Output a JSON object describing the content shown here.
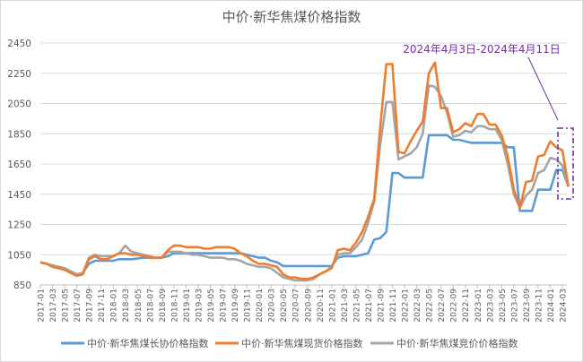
{
  "chart_data": {
    "type": "line",
    "title": "中价·新华焦煤价格指数",
    "xlabel": "",
    "ylabel": "",
    "ylim": [
      850,
      2450
    ],
    "yticks": [
      850,
      1050,
      1250,
      1450,
      1650,
      1850,
      2050,
      2250,
      2450
    ],
    "grid": true,
    "legend_placement": "bottom",
    "x": [
      "2017-01",
      "2017-02",
      "2017-03",
      "2017-04",
      "2017-05",
      "2017-06",
      "2017-07",
      "2017-08",
      "2017-09",
      "2017-10",
      "2017-11",
      "2017-12",
      "2018-01",
      "2018-02",
      "2018-03",
      "2018-04",
      "2018-05",
      "2018-06",
      "2018-07",
      "2018-08",
      "2018-09",
      "2018-10",
      "2018-11",
      "2018-12",
      "2019-01",
      "2019-02",
      "2019-03",
      "2019-04",
      "2019-05",
      "2019-06",
      "2019-07",
      "2019-08",
      "2019-09",
      "2019-10",
      "2019-11",
      "2019-12",
      "2020-01",
      "2020-02",
      "2020-03",
      "2020-04",
      "2020-05",
      "2020-06",
      "2020-07",
      "2020-08",
      "2020-09",
      "2020-10",
      "2020-11",
      "2020-12",
      "2021-01",
      "2021-02",
      "2021-03",
      "2021-04",
      "2021-05",
      "2021-06",
      "2021-07",
      "2021-08",
      "2021-09",
      "2021-10",
      "2021-11",
      "2021-12",
      "2022-01",
      "2022-02",
      "2022-03",
      "2022-04",
      "2022-05",
      "2022-06",
      "2022-07",
      "2022-08",
      "2022-09",
      "2022-10",
      "2022-11",
      "2022-12",
      "2023-01",
      "2023-02",
      "2023-03",
      "2023-04",
      "2023-05",
      "2023-06",
      "2023-07",
      "2023-08",
      "2023-09",
      "2023-10",
      "2023-11",
      "2023-12",
      "2024-01",
      "2024-02",
      "2024-03",
      "2024-04"
    ],
    "xtick_labels": [
      "2017-01",
      "2017-03",
      "2017-05",
      "2017-07",
      "2017-09",
      "2017-11",
      "2018-01",
      "2018-03",
      "2018-05",
      "2018-07",
      "2018-09",
      "2018-11",
      "2019-01",
      "2019-03",
      "2019-05",
      "2019-07",
      "2019-09",
      "2019-11",
      "2020-01",
      "2020-03",
      "2020-05",
      "2020-07",
      "2020-09",
      "2020-11",
      "2021-01",
      "2021-03",
      "2021-05",
      "2021-07",
      "2021-09",
      "2021-11",
      "2022-01",
      "2022-03",
      "2022-05",
      "2022-07",
      "2022-09",
      "2022-11",
      "2023-01",
      "2023-03",
      "2023-05",
      "2023-07",
      "2023-09",
      "2023-11",
      "2024-01",
      "2024-03"
    ],
    "series": [
      {
        "name": "中价·新华焦煤长协价格指数",
        "color": "#5b9bd5",
        "values": [
          1000,
          990,
          980,
          970,
          960,
          940,
          920,
          930,
          990,
          1010,
          1010,
          1010,
          1010,
          1020,
          1020,
          1020,
          1025,
          1030,
          1030,
          1030,
          1030,
          1040,
          1060,
          1060,
          1060,
          1060,
          1060,
          1060,
          1060,
          1060,
          1060,
          1060,
          1060,
          1060,
          1050,
          1040,
          1030,
          1030,
          1010,
          1000,
          975,
          975,
          975,
          975,
          975,
          975,
          975,
          975,
          975,
          1030,
          1040,
          1040,
          1040,
          1050,
          1060,
          1150,
          1160,
          1200,
          1590,
          1590,
          1560,
          1560,
          1560,
          1560,
          1840,
          1840,
          1840,
          1840,
          1810,
          1810,
          1800,
          1790,
          1790,
          1790,
          1790,
          1790,
          1790,
          1760,
          1760,
          1340,
          1340,
          1340,
          1480,
          1480,
          1480,
          1610,
          1610,
          1500
        ]
      },
      {
        "name": "中价·新华焦煤现货价格指数",
        "color": "#ed7d31",
        "values": [
          1000,
          990,
          970,
          960,
          950,
          930,
          910,
          920,
          1020,
          1040,
          1020,
          1020,
          1040,
          1060,
          1060,
          1050,
          1050,
          1040,
          1030,
          1030,
          1030,
          1080,
          1110,
          1110,
          1100,
          1100,
          1100,
          1090,
          1090,
          1100,
          1100,
          1100,
          1090,
          1060,
          1040,
          1010,
          990,
          990,
          980,
          970,
          920,
          900,
          900,
          890,
          890,
          900,
          920,
          940,
          960,
          1080,
          1090,
          1080,
          1130,
          1200,
          1300,
          1420,
          1900,
          2310,
          2310,
          1730,
          1720,
          1800,
          1870,
          1930,
          2250,
          2320,
          2020,
          2020,
          1860,
          1880,
          1920,
          1900,
          1980,
          1980,
          1910,
          1910,
          1840,
          1700,
          1480,
          1360,
          1530,
          1540,
          1700,
          1710,
          1800,
          1760,
          1740,
          1500
        ]
      },
      {
        "name": "中价·新华焦煤竞价价格指数",
        "color": "#a5a5a5",
        "values": [
          1000,
          990,
          980,
          970,
          960,
          940,
          920,
          930,
          1030,
          1050,
          1040,
          1040,
          1040,
          1060,
          1110,
          1070,
          1060,
          1050,
          1040,
          1030,
          1030,
          1070,
          1070,
          1070,
          1060,
          1050,
          1050,
          1040,
          1030,
          1030,
          1030,
          1020,
          1020,
          1010,
          990,
          980,
          970,
          970,
          960,
          930,
          900,
          890,
          880,
          880,
          880,
          890,
          920,
          940,
          970,
          1050,
          1060,
          1060,
          1100,
          1150,
          1260,
          1400,
          1780,
          2060,
          2060,
          1680,
          1700,
          1720,
          1760,
          1850,
          2170,
          2160,
          2100,
          1990,
          1830,
          1840,
          1870,
          1860,
          1900,
          1900,
          1880,
          1880,
          1810,
          1650,
          1450,
          1360,
          1440,
          1480,
          1590,
          1610,
          1690,
          1680,
          1640,
          1500
        ]
      }
    ],
    "annotation": {
      "text": "2024年4月3日-2024年4月11日",
      "color": "#7030a0"
    }
  }
}
